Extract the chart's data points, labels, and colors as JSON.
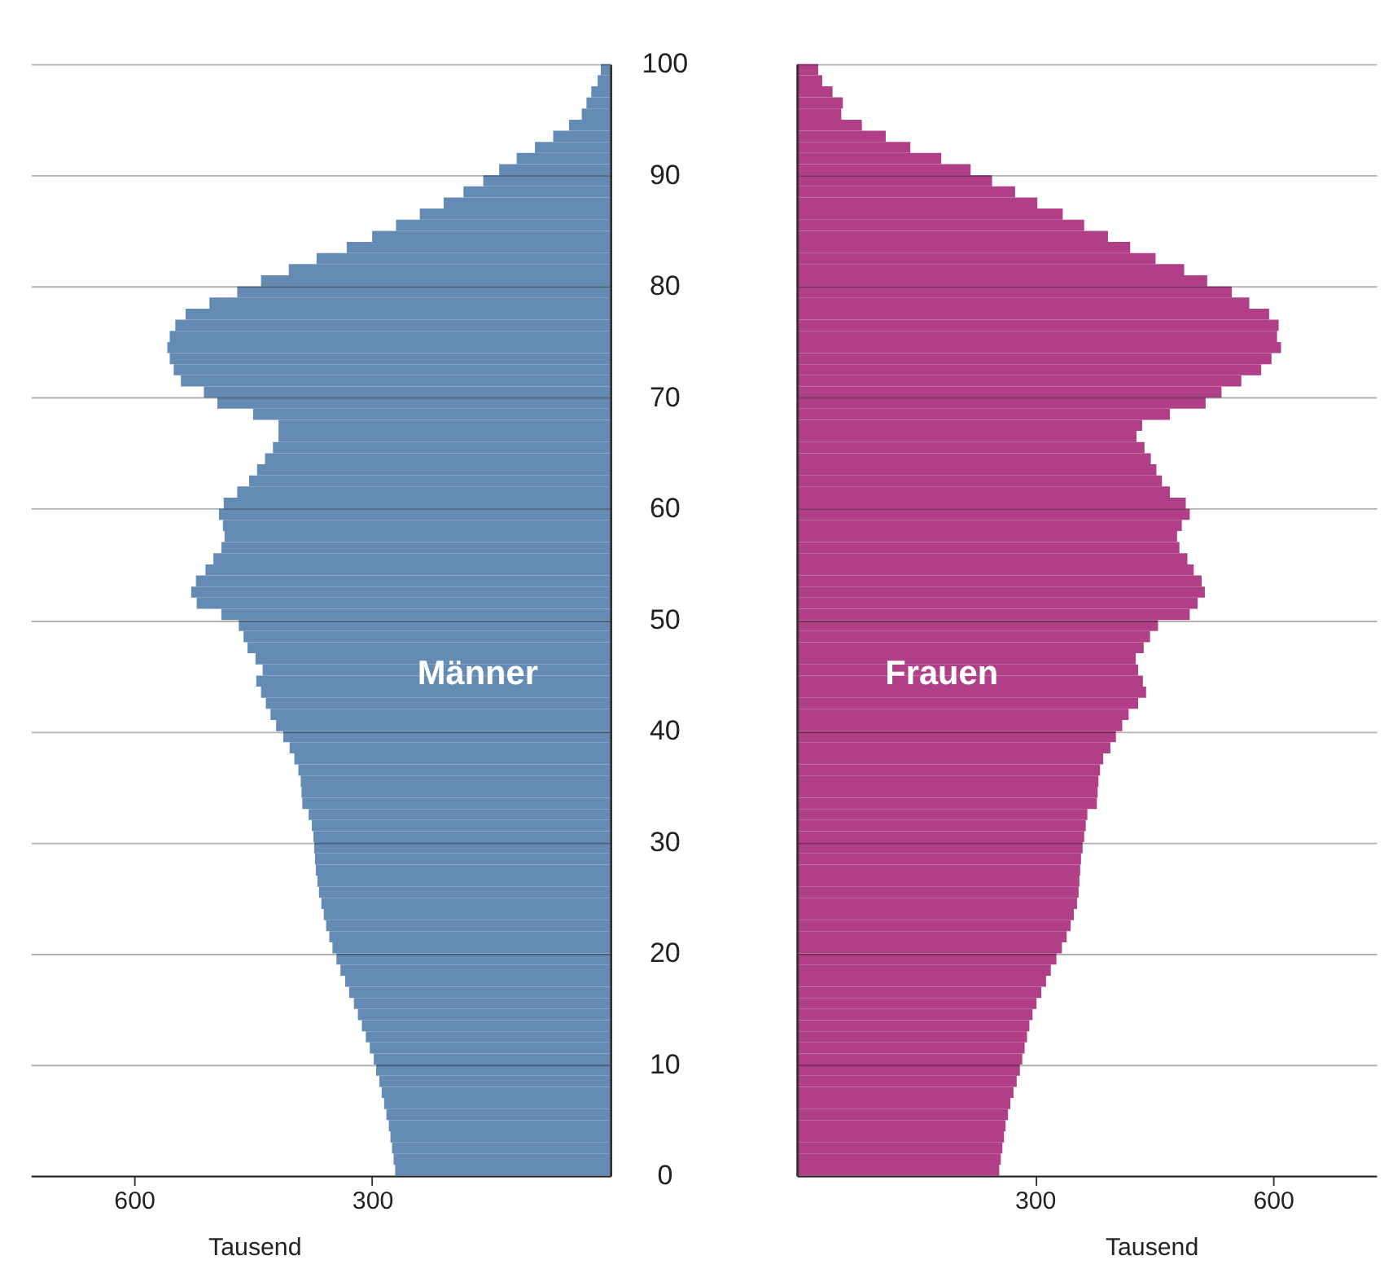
{
  "chart_data": [
    {
      "type": "bar",
      "orientation": "horizontal",
      "xlabel": "Tausend",
      "xlim": [
        730,
        0
      ],
      "xticks": [
        600,
        300
      ],
      "ylim": [
        0,
        100
      ],
      "yticks": [
        0,
        10,
        20,
        30,
        40,
        50,
        60,
        70,
        80,
        90,
        100
      ],
      "grid": "y",
      "x": [
        0.5,
        1.5,
        2.5,
        3.5,
        4.5,
        5.5,
        6.5,
        7.5,
        8.5,
        9.5,
        10.5,
        11.5,
        12.5,
        13.5,
        14.5,
        15.5,
        16.5,
        17.5,
        18.5,
        19.5,
        20.5,
        21.5,
        22.5,
        23.5,
        24.5,
        25.5,
        26.5,
        27.5,
        28.5,
        29.5,
        30.5,
        31.5,
        32.5,
        33.5,
        34.5,
        35.5,
        36.5,
        37.5,
        38.5,
        39.5,
        40.5,
        41.5,
        42.5,
        43.5,
        44.5,
        45.5,
        46.5,
        47.5,
        48.5,
        49.5,
        50.5,
        51.5,
        52.5,
        53.5,
        54.5,
        55.5,
        56.5,
        57.5,
        58.5,
        59.5,
        60.5,
        61.5,
        62.5,
        63.5,
        64.5,
        65.5,
        66.5,
        67.5,
        68.5,
        69.5,
        70.5,
        71.5,
        72.5,
        73.5,
        74.5,
        75.5,
        76.5,
        77.5,
        78.5,
        79.5,
        80.5,
        81.5,
        82.5,
        83.5,
        84.5,
        85.5,
        86.5,
        87.5,
        88.5,
        89.5,
        90.5,
        91.5,
        92.5,
        93.5,
        94.5,
        95.5,
        96.5,
        97.5,
        98.5,
        99.5
      ],
      "series": [
        {
          "name": "Männer",
          "color": "#648bb3",
          "values": [
            271,
            273,
            275,
            277,
            279,
            282,
            285,
            288,
            291,
            295,
            298,
            303,
            308,
            313,
            318,
            323,
            329,
            334,
            340,
            345,
            350,
            354,
            358,
            361,
            364,
            367,
            369,
            371,
            372,
            373,
            374,
            376,
            380,
            388,
            389,
            390,
            393,
            398,
            404,
            412,
            421,
            428,
            434,
            440,
            446,
            438,
            447,
            457,
            462,
            468,
            490,
            521,
            528,
            522,
            510,
            500,
            490,
            486,
            488,
            493,
            487,
            470,
            455,
            445,
            435,
            425,
            418,
            418,
            450,
            495,
            512,
            541,
            550,
            555,
            558,
            555,
            548,
            535,
            505,
            470,
            440,
            405,
            370,
            332,
            300,
            270,
            240,
            210,
            185,
            160,
            140,
            118,
            95,
            72,
            52,
            36,
            30,
            24,
            16,
            12
          ]
        }
      ]
    },
    {
      "type": "bar",
      "orientation": "horizontal",
      "xlabel": "Tausend",
      "xlim": [
        0,
        730
      ],
      "xticks": [
        300,
        600
      ],
      "ylim": [
        0,
        100
      ],
      "yticks": [
        0,
        10,
        20,
        30,
        40,
        50,
        60,
        70,
        80,
        90,
        100
      ],
      "grid": "y",
      "tick_labels": "x",
      "x": [
        0.5,
        1.5,
        2.5,
        3.5,
        4.5,
        5.5,
        6.5,
        7.5,
        8.5,
        9.5,
        10.5,
        11.5,
        12.5,
        13.5,
        14.5,
        15.5,
        16.5,
        17.5,
        18.5,
        19.5,
        20.5,
        21.5,
        22.5,
        23.5,
        24.5,
        25.5,
        26.5,
        27.5,
        28.5,
        29.5,
        30.5,
        31.5,
        32.5,
        33.5,
        34.5,
        35.5,
        36.5,
        37.5,
        38.5,
        39.5,
        40.5,
        41.5,
        42.5,
        43.5,
        44.5,
        45.5,
        46.5,
        47.5,
        48.5,
        49.5,
        50.5,
        51.5,
        52.5,
        53.5,
        54.5,
        55.5,
        56.5,
        57.5,
        58.5,
        59.5,
        60.5,
        61.5,
        62.5,
        63.5,
        64.5,
        65.5,
        66.5,
        67.5,
        68.5,
        69.5,
        70.5,
        71.5,
        72.5,
        73.5,
        74.5,
        75.5,
        76.5,
        77.5,
        78.5,
        79.5,
        80.5,
        81.5,
        82.5,
        83.5,
        84.5,
        85.5,
        86.5,
        87.5,
        88.5,
        89.5,
        90.5,
        91.5,
        92.5,
        93.5,
        94.5,
        95.5,
        96.5,
        97.5,
        98.5,
        99.5
      ],
      "series": [
        {
          "name": "Frauen",
          "color": "#b03f87",
          "values": [
            255,
            257,
            259,
            261,
            263,
            266,
            269,
            273,
            277,
            281,
            284,
            287,
            290,
            293,
            297,
            302,
            308,
            314,
            320,
            327,
            334,
            340,
            345,
            349,
            353,
            355,
            356,
            357,
            358,
            360,
            362,
            364,
            366,
            378,
            379,
            380,
            382,
            386,
            395,
            402,
            410,
            418,
            430,
            440,
            436,
            430,
            427,
            437,
            445,
            455,
            495,
            505,
            514,
            510,
            500,
            492,
            482,
            479,
            485,
            495,
            490,
            470,
            460,
            453,
            446,
            438,
            428,
            435,
            470,
            515,
            535,
            560,
            585,
            598,
            610,
            605,
            607,
            595,
            570,
            548,
            517,
            488,
            452,
            420,
            392,
            362,
            335,
            303,
            275,
            246,
            219,
            182,
            143,
            112,
            82,
            56,
            58,
            45,
            32,
            27
          ]
        }
      ]
    }
  ]
}
